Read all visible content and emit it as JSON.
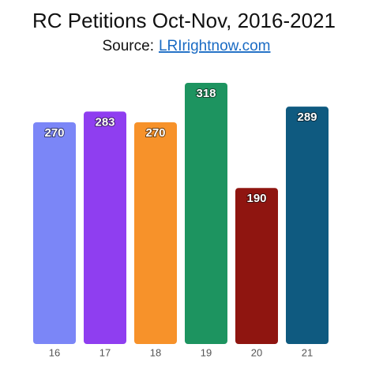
{
  "chart_data": {
    "type": "bar",
    "title": "RC Petitions Oct-Nov, 2016-2021",
    "subtitle": "Source:",
    "source_link": "LRIrightnow.com",
    "categories": [
      "16",
      "17",
      "18",
      "19",
      "20",
      "21"
    ],
    "values": [
      270,
      283,
      270,
      318,
      190,
      289
    ],
    "colors": [
      "#7b86f7",
      "#8f3ef0",
      "#f7922a",
      "#1d9460",
      "#8f1510",
      "#0f5a80"
    ]
  }
}
